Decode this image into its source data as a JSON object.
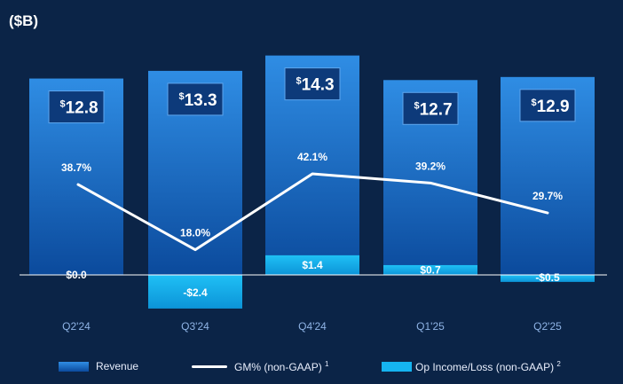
{
  "unit_label": "($B)",
  "colors": {
    "background": "#0b2447",
    "revenue_top": "#2f8de4",
    "revenue_bottom": "#0b4a9c",
    "value_box": "#0d3a7a",
    "op_income": "#15b4f0",
    "gm_line": "#ffffff"
  },
  "legend": {
    "revenue": "Revenue",
    "gm": "GM% (non-GAAP)",
    "gm_note": "1",
    "op": "Op Income/Loss (non-GAAP)",
    "op_note": "2"
  },
  "chart_data": {
    "type": "bar",
    "categories": [
      "Q2'24",
      "Q3'24",
      "Q4'24",
      "Q1'25",
      "Q2'25"
    ],
    "series": [
      {
        "name": "Revenue",
        "values": [
          12.8,
          13.3,
          14.3,
          12.7,
          12.9
        ],
        "labels": [
          "12.8",
          "13.3",
          "14.3",
          "12.7",
          "12.9"
        ]
      },
      {
        "name": "Op Income/Loss (non-GAAP)",
        "values": [
          0.0,
          -2.4,
          1.4,
          0.7,
          -0.5
        ],
        "labels": [
          "$0.0",
          "-$2.4",
          "$1.4",
          "$0.7",
          "-$0.5"
        ]
      },
      {
        "name": "GM% (non-GAAP)",
        "type": "line",
        "values": [
          38.7,
          18.0,
          42.1,
          39.2,
          29.7
        ],
        "labels": [
          "38.7%",
          "18.0%",
          "42.1%",
          "39.2%",
          "29.7%"
        ]
      }
    ]
  }
}
